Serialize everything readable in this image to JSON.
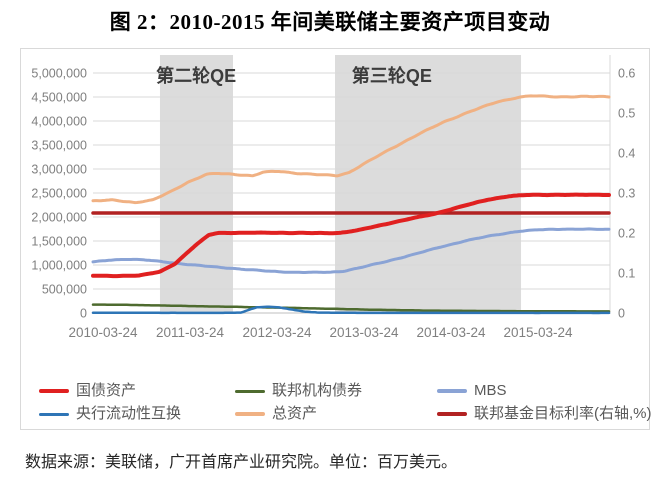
{
  "title": "图 2：2010-2015 年间美联储主要资产项目变动",
  "footer": "数据来源：美联储，广开首席产业研究院。单位：百万美元。",
  "colors": {
    "grid": "#d9d9d9",
    "grid_zero": "#bfbfbf",
    "band": "#dcdcdc",
    "axis_text": "#7f7f7f",
    "annotation_text": "#3c3c3c",
    "legend_text": "#595959",
    "plot_right_border": "#d9d9d9"
  },
  "chart_data": {
    "type": "line",
    "title": "图 2：2010-2015 年间美联储主要资产项目变动",
    "unit": "百万美元",
    "x_tick_labels": [
      "2010-03-24",
      "2011-03-24",
      "2012-03-24",
      "2013-03-24",
      "2014-03-24",
      "2015-03-24"
    ],
    "x_tick_years": [
      2010.23,
      2011.23,
      2012.23,
      2013.23,
      2014.23,
      2015.23
    ],
    "x_range": [
      2010.115,
      2016.06
    ],
    "left_axis": {
      "min": 0,
      "max": 5000000,
      "step": 500000,
      "labels": [
        "0",
        "500,000",
        "1,000,000",
        "1,500,000",
        "2,000,000",
        "2,500,000",
        "3,000,000",
        "3,500,000",
        "4,000,000",
        "4,500,000",
        "5,000,000"
      ]
    },
    "right_axis": {
      "min": 0,
      "max": 0.6,
      "step": 0.1,
      "labels": [
        "0",
        "0.1",
        "0.2",
        "0.3",
        "0.4",
        "0.5",
        "0.6"
      ]
    },
    "annotations": [
      {
        "label": "第二轮QE",
        "start": 2010.885,
        "end": 2011.724,
        "label_year": 2011.3
      },
      {
        "label": "第三轮QE",
        "start": 2012.897,
        "end": 2015.035,
        "label_year": 2013.55
      }
    ],
    "series": [
      {
        "name": "国债资产",
        "color": "#e02020",
        "axis": "left",
        "width": 4,
        "noise": 4500,
        "legend_slot": 0,
        "points": [
          [
            2010.115,
            778000
          ],
          [
            2010.4,
            772000
          ],
          [
            2010.65,
            780000
          ],
          [
            2010.885,
            860000
          ],
          [
            2011.06,
            1030000
          ],
          [
            2011.3,
            1420000
          ],
          [
            2011.45,
            1630000
          ],
          [
            2011.55,
            1668000
          ],
          [
            2011.8,
            1670000
          ],
          [
            2012.1,
            1673000
          ],
          [
            2012.4,
            1668000
          ],
          [
            2012.7,
            1665000
          ],
          [
            2012.95,
            1668000
          ],
          [
            2013.15,
            1720000
          ],
          [
            2013.45,
            1840000
          ],
          [
            2013.75,
            1960000
          ],
          [
            2014.05,
            2070000
          ],
          [
            2014.35,
            2220000
          ],
          [
            2014.65,
            2360000
          ],
          [
            2014.9,
            2435000
          ],
          [
            2015.1,
            2458000
          ],
          [
            2015.4,
            2462000
          ],
          [
            2016.06,
            2462000
          ]
        ]
      },
      {
        "name": "联邦机构债券",
        "color": "#4e6b2f",
        "axis": "left",
        "width": 2.5,
        "noise": 1500,
        "legend_slot": 1,
        "points": [
          [
            2010.115,
            176000
          ],
          [
            2010.5,
            170000
          ],
          [
            2011.0,
            153000
          ],
          [
            2011.5,
            136000
          ],
          [
            2012.0,
            120000
          ],
          [
            2012.4,
            106000
          ],
          [
            2012.8,
            90000
          ],
          [
            2013.2,
            74000
          ],
          [
            2013.6,
            60000
          ],
          [
            2014.0,
            50000
          ],
          [
            2014.5,
            43000
          ],
          [
            2015.0,
            38000
          ],
          [
            2015.5,
            35000
          ],
          [
            2016.06,
            33000
          ]
        ]
      },
      {
        "name": "MBS",
        "color": "#8aa3d5",
        "axis": "left",
        "width": 3,
        "noise": 6500,
        "legend_slot": 2,
        "points": [
          [
            2010.115,
            1062000
          ],
          [
            2010.3,
            1100000
          ],
          [
            2010.5,
            1122000
          ],
          [
            2010.7,
            1108000
          ],
          [
            2010.95,
            1062000
          ],
          [
            2011.2,
            1012000
          ],
          [
            2011.5,
            962000
          ],
          [
            2011.8,
            918000
          ],
          [
            2012.1,
            875000
          ],
          [
            2012.35,
            852000
          ],
          [
            2012.6,
            845000
          ],
          [
            2012.85,
            850000
          ],
          [
            2013.0,
            872000
          ],
          [
            2013.2,
            950000
          ],
          [
            2013.5,
            1080000
          ],
          [
            2013.8,
            1220000
          ],
          [
            2014.1,
            1370000
          ],
          [
            2014.4,
            1505000
          ],
          [
            2014.7,
            1615000
          ],
          [
            2015.0,
            1700000
          ],
          [
            2015.25,
            1735000
          ],
          [
            2015.5,
            1748000
          ],
          [
            2016.06,
            1742000
          ]
        ]
      },
      {
        "name": "央行流动性互换",
        "color": "#2e75b6",
        "axis": "left",
        "width": 2.5,
        "noise": 400,
        "legend_slot": 3,
        "points": [
          [
            2010.115,
            7000
          ],
          [
            2010.4,
            5000
          ],
          [
            2010.8,
            3500
          ],
          [
            2011.2,
            2500
          ],
          [
            2011.6,
            2500
          ],
          [
            2011.82,
            9000
          ],
          [
            2011.92,
            75000
          ],
          [
            2012.0,
            120000
          ],
          [
            2012.12,
            130000
          ],
          [
            2012.25,
            118000
          ],
          [
            2012.4,
            72000
          ],
          [
            2012.55,
            28000
          ],
          [
            2012.7,
            10000
          ],
          [
            2013.0,
            3500
          ],
          [
            2013.5,
            2000
          ],
          [
            2014.5,
            1500
          ],
          [
            2016.06,
            1200
          ]
        ]
      },
      {
        "name": "总资产",
        "color": "#f0b183",
        "axis": "left",
        "width": 3,
        "noise": 9000,
        "legend_slot": 4,
        "points": [
          [
            2010.115,
            2335000
          ],
          [
            2010.35,
            2352000
          ],
          [
            2010.6,
            2302000
          ],
          [
            2010.8,
            2352000
          ],
          [
            2011.0,
            2520000
          ],
          [
            2011.2,
            2720000
          ],
          [
            2011.42,
            2888000
          ],
          [
            2011.55,
            2908000
          ],
          [
            2011.72,
            2892000
          ],
          [
            2011.95,
            2858000
          ],
          [
            2012.07,
            2932000
          ],
          [
            2012.25,
            2952000
          ],
          [
            2012.45,
            2912000
          ],
          [
            2012.7,
            2882000
          ],
          [
            2012.92,
            2862000
          ],
          [
            2013.05,
            2920000
          ],
          [
            2013.25,
            3130000
          ],
          [
            2013.55,
            3430000
          ],
          [
            2013.85,
            3720000
          ],
          [
            2014.15,
            3980000
          ],
          [
            2014.45,
            4200000
          ],
          [
            2014.75,
            4390000
          ],
          [
            2015.0,
            4495000
          ],
          [
            2015.15,
            4525000
          ],
          [
            2015.45,
            4502000
          ],
          [
            2015.75,
            4512000
          ],
          [
            2016.06,
            4502000
          ]
        ]
      },
      {
        "name": "联邦基金目标利率(右轴,%)",
        "color": "#b22222",
        "axis": "right",
        "width": 3.5,
        "noise": 0,
        "legend_slot": 5,
        "points": [
          [
            2010.115,
            0.25
          ],
          [
            2016.06,
            0.25
          ]
        ]
      }
    ],
    "legend_position": "bottom"
  }
}
